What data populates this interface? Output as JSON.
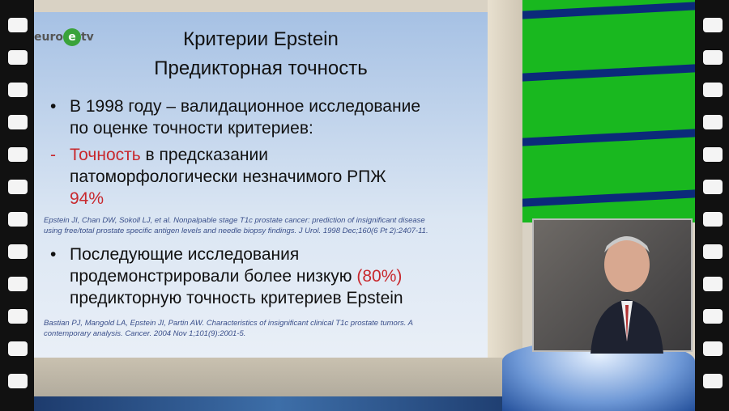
{
  "logo": {
    "text_left": "euro",
    "text_mid": "e",
    "text_right": "tv"
  },
  "slide": {
    "title_line1": "Критерии Epstein",
    "title_line2": "Предикторная точность",
    "bullet1_line1": "В 1998 году – валидационное исследование",
    "bullet1_line2": "по оценке точности критериев:",
    "sub_marker": "-",
    "sub_highlight": "Точность",
    "sub_line1_rest": " в предсказании",
    "sub_line2": "патоморфологически незначимого РПЖ",
    "sub_value": "94%",
    "cite1_line1": "Epstein JI, Chan DW, Sokoll LJ, et al. Nonpalpable stage T1c prostate cancer: prediction of insignificant disease",
    "cite1_line2": "using free/total prostate specific antigen levels and needle biopsy findings. J Urol. 1998 Dec;160(6 Pt 2):2407-11.",
    "bullet2_line1": "Последующие исследования",
    "bullet2_line2_pre": "продемонстрировали более низкую ",
    "bullet2_value": "(80%)",
    "bullet2_line3": "предикторную точность критериев Epstein",
    "cite2_line1": "Bastian PJ, Mangold LA, Epstein JI, Partin AW. Characteristics of insignificant clinical T1c prostate tumors. A",
    "cite2_line2": "contemporary analysis. Cancer. 2004 Nov 1;101(9):2001-5."
  },
  "colors": {
    "accent_red": "#c8282d",
    "studio_green": "#19b81f",
    "studio_blue": "#0b2a7a"
  }
}
